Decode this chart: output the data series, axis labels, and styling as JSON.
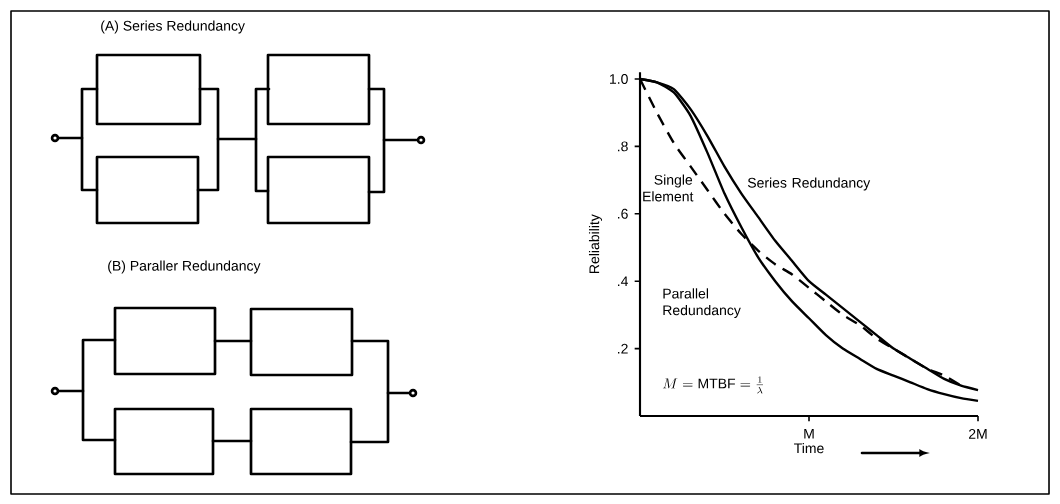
{
  "chart_data": {
    "type": "line",
    "xlabel": "Time",
    "ylabel": "Reliability",
    "ylim": [
      0,
      1.02
    ],
    "categories": [
      null,
      null,
      null,
      null,
      null,
      null,
      null,
      null,
      null,
      null,
      "M",
      null,
      null,
      null,
      null,
      null,
      null,
      null,
      null,
      null,
      "2M"
    ],
    "yticks": [
      {
        "value": 0.2,
        "label": ".2"
      },
      {
        "value": 0.4,
        "label": ".4"
      },
      {
        "value": 0.6,
        "label": ".6"
      },
      {
        "value": 0.8,
        "label": ".8"
      },
      {
        "value": 1.0,
        "label": "1.0"
      }
    ],
    "marker": "none",
    "legend": false,
    "grid": false,
    "series": [
      {
        "name": "Series Redundancy",
        "color": "#000000",
        "line_style": "solid",
        "values": [
          1,
          0.99,
          0.97,
          0.91,
          0.83,
          0.74,
          0.66,
          0.59,
          0.52,
          0.46,
          0.4,
          0.36,
          0.32,
          0.28,
          0.24,
          0.2,
          0.17,
          0.14,
          0.11,
          0.09,
          0.077
        ]
      },
      {
        "name": "Parallel Redundancy",
        "color": "#000000",
        "line_style": "solid",
        "values": [
          1,
          0.99,
          0.96,
          0.89,
          0.78,
          0.66,
          0.56,
          0.47,
          0.4,
          0.34,
          0.29,
          0.24,
          0.2,
          0.17,
          0.14,
          0.12,
          0.1,
          0.08,
          0.065,
          0.053,
          0.045
        ]
      },
      {
        "name": "Single Element",
        "color": "#000000",
        "line_style": "dashed",
        "values": [
          1,
          0.9,
          0.81,
          0.74,
          0.67,
          0.6,
          0.54,
          0.49,
          0.45,
          0.42,
          0.38,
          0.34,
          0.3,
          0.27,
          0.23,
          0.2,
          0.17,
          0.14,
          0.12,
          0.09,
          null
        ]
      }
    ],
    "annotations": [
      "(A) Series Redundancy",
      "(B) Paraller Redundancy",
      "M = \\mathrm{MTBF} = \\frac{1}{\\lambda}"
    ]
  }
}
